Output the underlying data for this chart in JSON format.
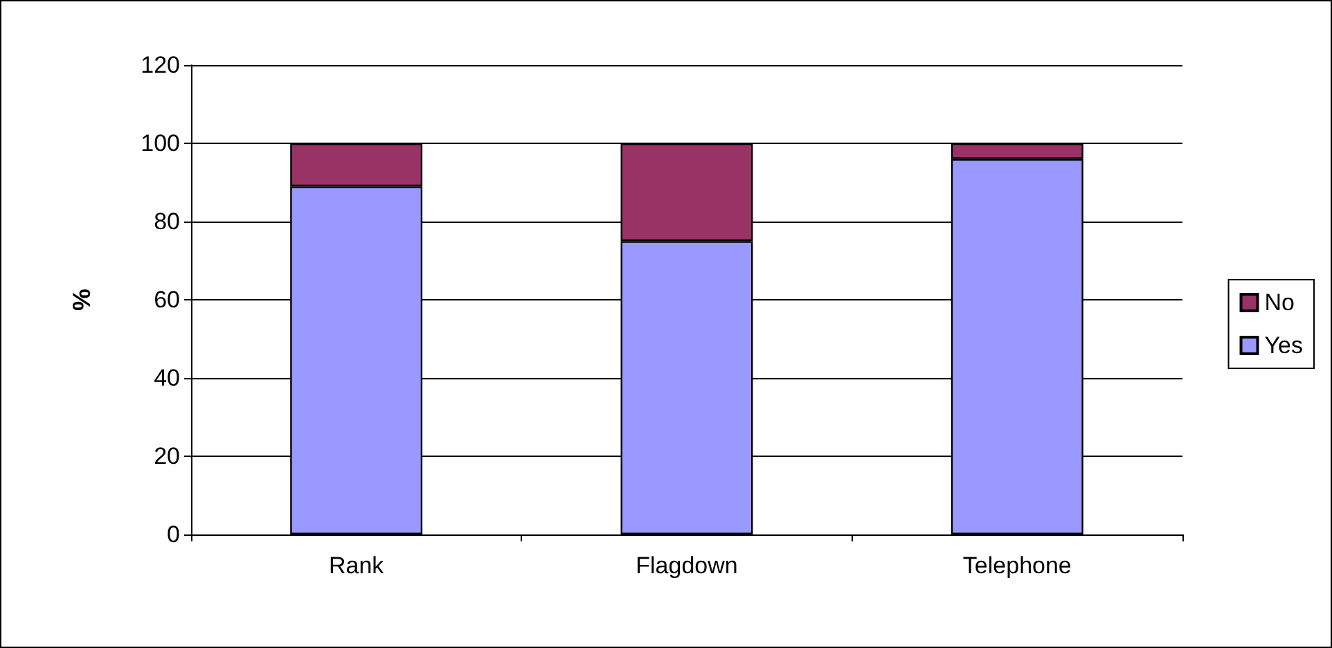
{
  "chart_data": {
    "type": "bar",
    "ylabel": "%",
    "categories": [
      "Rank",
      "Flagdown",
      "Telephone"
    ],
    "series": [
      {
        "name": "Yes",
        "color": "#9999ff",
        "values": [
          89,
          75,
          96
        ]
      },
      {
        "name": "No",
        "color": "#993366",
        "values": [
          11,
          25,
          4
        ]
      }
    ],
    "stacked": true,
    "ylim": [
      0,
      120
    ],
    "yticks": [
      0,
      20,
      40,
      60,
      80,
      100,
      120
    ],
    "grid": "y",
    "legend": "right"
  }
}
